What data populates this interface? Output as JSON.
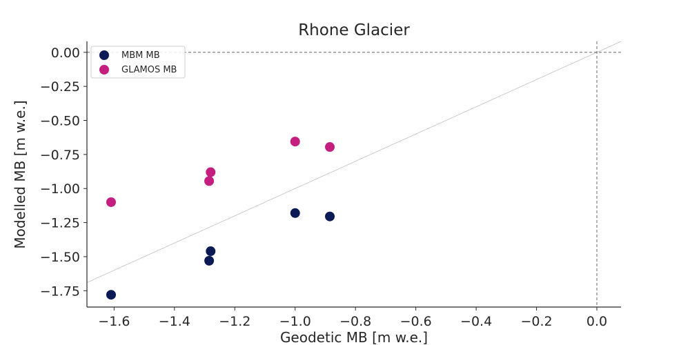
{
  "chart_data": {
    "type": "scatter",
    "title": "Rhone Glacier",
    "xlabel": "Geodetic MB [m w.e.]",
    "ylabel": "Modelled MB [m w.e.]",
    "xlim": [
      -1.69,
      0.08
    ],
    "ylim": [
      -1.87,
      0.08
    ],
    "xticks": [
      -1.6,
      -1.4,
      -1.2,
      -1.0,
      -0.8,
      -0.6,
      -0.4,
      -0.2,
      0.0
    ],
    "xtick_labels": [
      "−1.6",
      "−1.4",
      "−1.2",
      "−1.0",
      "−0.8",
      "−0.6",
      "−0.4",
      "−0.2",
      "0.0"
    ],
    "yticks": [
      0.0,
      -0.25,
      -0.5,
      -0.75,
      -1.0,
      -1.25,
      -1.5,
      -1.75
    ],
    "ytick_labels": [
      "0.00",
      "−0.25",
      "−0.50",
      "−0.75",
      "−1.00",
      "−1.25",
      "−1.50",
      "−1.75"
    ],
    "grid": false,
    "legend_position": "top-left",
    "reference_lines": {
      "x_zero": true,
      "y_zero": true,
      "one_to_one": true
    },
    "series": [
      {
        "name": "MBM MB",
        "color": "#0b1a55",
        "points": [
          {
            "x": -1.61,
            "y": -1.78
          },
          {
            "x": -1.285,
            "y": -1.53
          },
          {
            "x": -1.28,
            "y": -1.46
          },
          {
            "x": -1.0,
            "y": -1.18
          },
          {
            "x": -0.885,
            "y": -1.205
          }
        ]
      },
      {
        "name": "GLAMOS MB",
        "color": "#c41e7e",
        "points": [
          {
            "x": -1.61,
            "y": -1.1
          },
          {
            "x": -1.285,
            "y": -0.945
          },
          {
            "x": -1.28,
            "y": -0.88
          },
          {
            "x": -1.0,
            "y": -0.655
          },
          {
            "x": -0.885,
            "y": -0.695
          }
        ]
      }
    ]
  }
}
